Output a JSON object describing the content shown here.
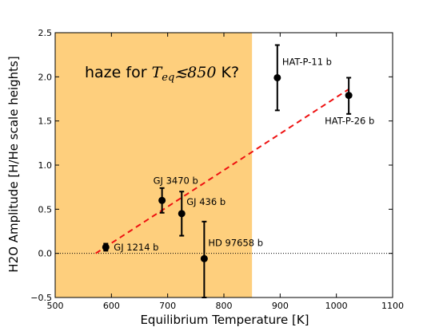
{
  "chart_data": {
    "type": "scatter",
    "xlabel": "Equilibrium Temperature [K]",
    "ylabel": "H2O Amplitude [H/He scale heights]",
    "xlim": [
      500,
      1100
    ],
    "ylim": [
      -0.5,
      2.5
    ],
    "xticks": [
      500,
      600,
      700,
      800,
      900,
      1000,
      1100
    ],
    "yticks": [
      -0.5,
      0.0,
      0.5,
      1.0,
      1.5,
      2.0,
      2.5
    ],
    "xtick_labels": [
      "500",
      "600",
      "700",
      "800",
      "900",
      "1000",
      "1100"
    ],
    "ytick_labels": [
      "−0.5",
      "0.0",
      "0.5",
      "1.0",
      "1.5",
      "2.0",
      "2.5"
    ],
    "haze_region": {
      "x0": 500,
      "x1": 850,
      "color": "#fecf7d"
    },
    "annotation": {
      "prefix": "haze for ",
      "math_var": "T",
      "math_sub": "eq",
      "math_rel": "≲850",
      "suffix": " K?"
    },
    "baseline_y": 0.0,
    "trend_line": {
      "x": [
        572,
        1022
      ],
      "y": [
        0.0,
        1.86
      ],
      "color": "#ee1111",
      "style": "dashed"
    },
    "points": [
      {
        "name": "GJ 1214 b",
        "x": 590,
        "y": 0.07,
        "yerr_low": 0.04,
        "yerr_high": 0.04
      },
      {
        "name": "GJ 3470 b",
        "x": 690,
        "y": 0.6,
        "yerr_low": 0.14,
        "yerr_high": 0.14
      },
      {
        "name": "GJ 436 b",
        "x": 725,
        "y": 0.45,
        "yerr_low": 0.25,
        "yerr_high": 0.25
      },
      {
        "name": "HD 97658 b",
        "x": 765,
        "y": -0.06,
        "yerr_low": 0.44,
        "yerr_high": 0.42
      },
      {
        "name": "HAT-P-11 b",
        "x": 895,
        "y": 1.99,
        "yerr_low": 0.37,
        "yerr_high": 0.37
      },
      {
        "name": "HAT-P-26 b",
        "x": 1022,
        "y": 1.79,
        "yerr_low": 0.21,
        "yerr_high": 0.2
      }
    ],
    "marker_color": "#000000",
    "grid": false
  }
}
